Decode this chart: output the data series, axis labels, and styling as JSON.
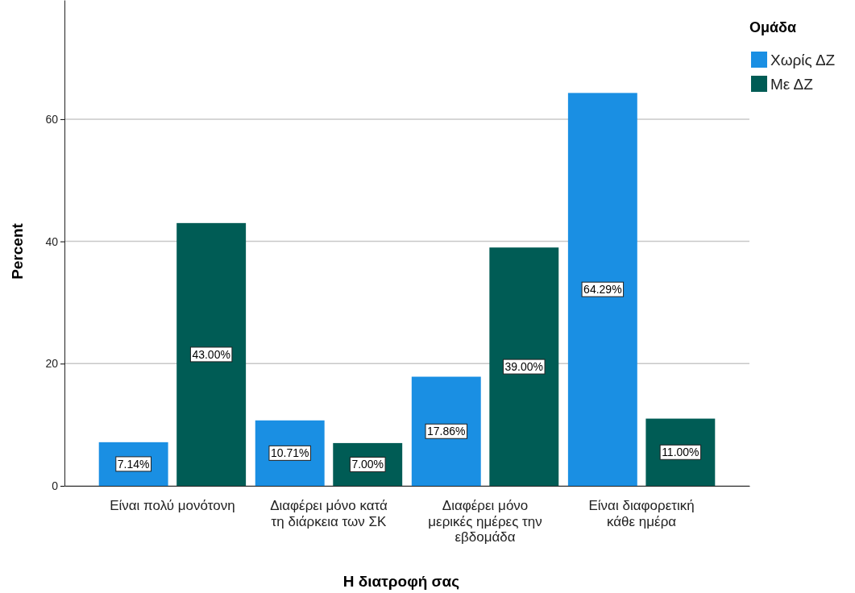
{
  "chart_data": {
    "type": "bar",
    "xlabel": "Η διατροφή σας",
    "ylabel": "Percent",
    "legend_title": "Ομάδα",
    "legend": "top right",
    "grid": "y",
    "categories": [
      "Είναι πολύ μονότονη",
      "Διαφέρει μόνο κατά τη διάρκεια των ΣΚ",
      "Διαφέρει μόνο μερικές ημέρες την εβδομάδα",
      "Είναι διαφορετική κάθε ημέρα"
    ],
    "ylim": [
      0,
      79.5
    ],
    "yticks": [
      0,
      20,
      40,
      60
    ],
    "series": [
      {
        "name": "Χωρίς ΔΖ",
        "color": "#1a8fe3",
        "values": [
          7.14,
          10.71,
          17.86,
          64.29
        ],
        "value_labels": [
          "7.14%",
          "10.71%",
          "17.86%",
          "64.29%"
        ]
      },
      {
        "name": "Με ΔΖ",
        "color": "#005c55",
        "values": [
          43.0,
          7.0,
          39.0,
          11.0
        ],
        "value_labels": [
          "43.00%",
          "7.00%",
          "39.00%",
          "11.00%"
        ]
      }
    ]
  }
}
